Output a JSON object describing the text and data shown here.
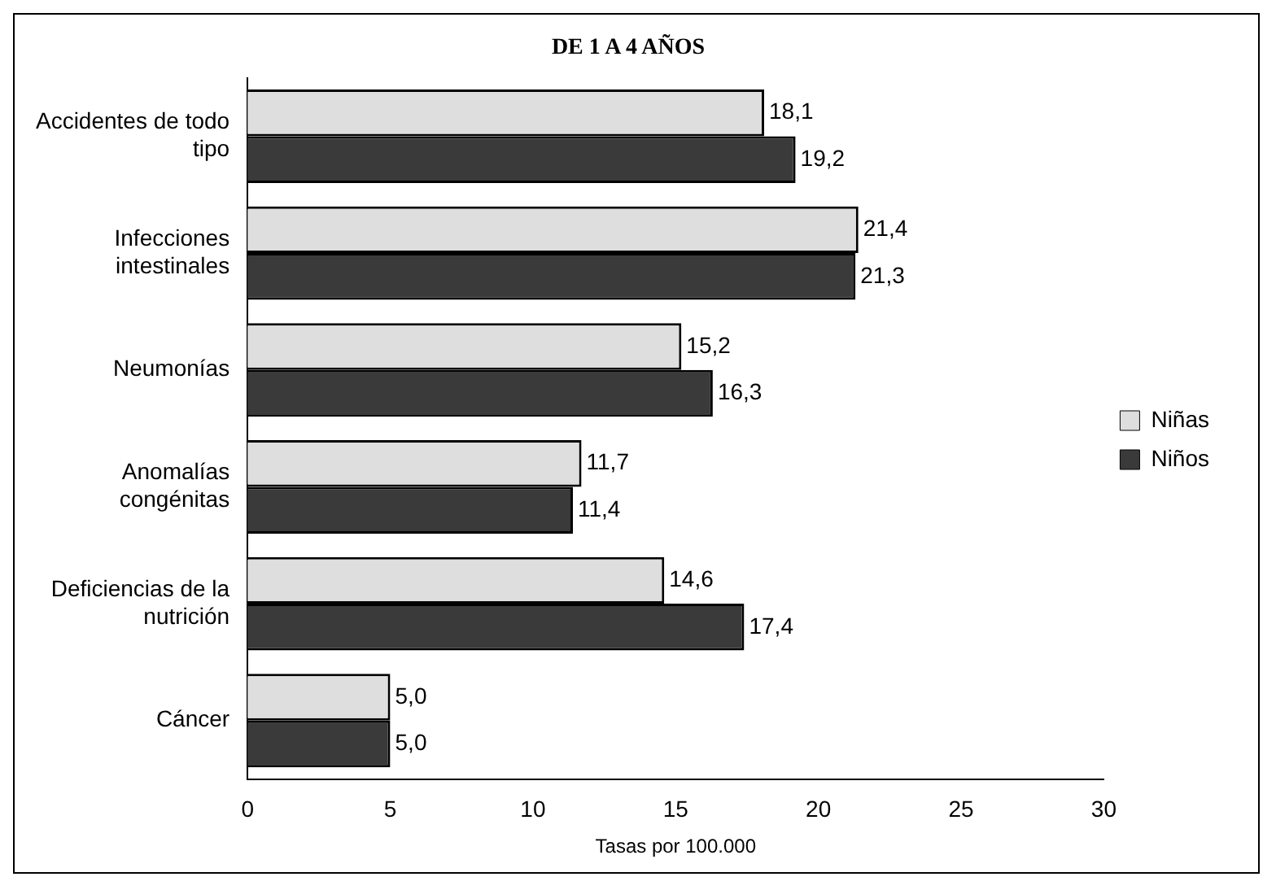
{
  "chart_data": {
    "type": "bar",
    "orientation": "horizontal",
    "title": "DE 1 A 4 AÑOS",
    "xlabel": "Tasas por 100.000",
    "categories": [
      "Accidentes de todo tipo",
      "Infecciones intestinales",
      "Neumonías",
      "Anomalías congénitas",
      "Deficiencias de la nutrición",
      "Cáncer"
    ],
    "series": [
      {
        "name": "Niñas",
        "color": "#dedede",
        "values": [
          18.1,
          21.4,
          15.2,
          11.7,
          14.6,
          5.0
        ],
        "value_labels": [
          "18,1",
          "21,4",
          "15,2",
          "11,7",
          "14,6",
          "5,0"
        ]
      },
      {
        "name": "Niños",
        "color": "#3a3a3a",
        "values": [
          19.2,
          21.3,
          16.3,
          11.4,
          17.4,
          5.0
        ],
        "value_labels": [
          "19,2",
          "21,3",
          "16,3",
          "11,4",
          "17,4",
          "5,0"
        ]
      }
    ],
    "xlim": [
      0,
      30
    ],
    "xticks": [
      0,
      5,
      10,
      15,
      20,
      25,
      30
    ],
    "grid": false,
    "legend": "right"
  }
}
